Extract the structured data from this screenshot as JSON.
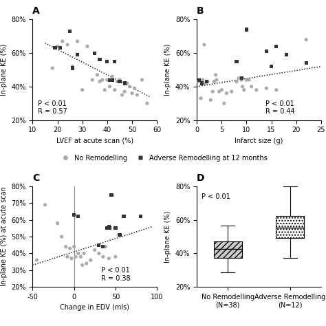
{
  "chart_data": [
    {
      "type": "scatter",
      "title": "A",
      "xlabel": "LVEF at acute scan (%)",
      "ylabel": "In-plane KE (%)",
      "xlim": [
        10,
        60
      ],
      "ylim": [
        0.2,
        0.8
      ],
      "xticks": [
        10,
        20,
        30,
        40,
        50,
        60
      ],
      "yticks": [
        {
          "value": 0.2,
          "label": "20%"
        },
        {
          "value": 0.4,
          "label": "40%"
        },
        {
          "value": 0.6,
          "label": "60%"
        },
        {
          "value": 0.8,
          "label": "80%"
        }
      ],
      "annotations": [
        {
          "text": "P < 0.01\nR = 0.57"
        }
      ],
      "legend": "center",
      "series": [
        {
          "name": "No Remodelling",
          "type": "scatter",
          "marker": "circle",
          "color": "#aaaaaa",
          "x": [
            18,
            20,
            22,
            24,
            26,
            28,
            30,
            32,
            34,
            36,
            37,
            38,
            39,
            40,
            41,
            42,
            43,
            44,
            45,
            46,
            47,
            48,
            49,
            50,
            51,
            52,
            54,
            56
          ],
          "values": [
            0.51,
            0.64,
            0.67,
            0.65,
            0.52,
            0.67,
            0.38,
            0.64,
            0.44,
            0.47,
            0.43,
            0.44,
            0.38,
            0.44,
            0.4,
            0.46,
            0.38,
            0.43,
            0.44,
            0.35,
            0.37,
            0.42,
            0.4,
            0.36,
            0.39,
            0.35,
            0.44,
            0.3
          ]
        },
        {
          "name": "Adverse Remodelling at 12 months",
          "type": "scatter",
          "marker": "square",
          "color": "#333333",
          "x": [
            19,
            21,
            25,
            26,
            28,
            35,
            37,
            40,
            41,
            42,
            43,
            45,
            47
          ],
          "values": [
            0.63,
            0.63,
            0.73,
            0.51,
            0.59,
            0.6,
            0.56,
            0.55,
            0.44,
            0.44,
            0.55,
            0.43,
            0.42
          ]
        },
        {
          "type": "line",
          "line_style": "dotted",
          "color": "#000000",
          "x": [
            15,
            57
          ],
          "values": [
            0.66,
            0.34
          ]
        }
      ]
    },
    {
      "type": "scatter",
      "title": "B",
      "xlabel": "Infarct size (g)",
      "ylabel": "In-plane KE (%)",
      "xlim": [
        0,
        25
      ],
      "ylim": [
        0.2,
        0.8
      ],
      "xticks": [
        0,
        5,
        10,
        15,
        20,
        25
      ],
      "yticks": [
        {
          "value": 0.2,
          "label": "20%"
        },
        {
          "value": 0.4,
          "label": "40%"
        },
        {
          "value": 0.6,
          "label": "60%"
        },
        {
          "value": 0.8,
          "label": "80%"
        }
      ],
      "annotations": [
        {
          "text": "P < 0.01\nR = 0.44"
        }
      ],
      "series": [
        {
          "name": "No Remodelling",
          "type": "scatter",
          "marker": "circle",
          "color": "#aaaaaa",
          "x": [
            0.3,
            0.8,
            1.2,
            1.8,
            2.2,
            2.8,
            3.2,
            3.8,
            4.5,
            5.0,
            5.5,
            6,
            7,
            8,
            8.5,
            9.0,
            9.5,
            10,
            11,
            12,
            14,
            16,
            22,
            0.5,
            1.5,
            3.5,
            4.0,
            9.2,
            10.5
          ],
          "values": [
            0.43,
            0.33,
            0.44,
            0.42,
            0.43,
            0.32,
            0.37,
            0.47,
            0.37,
            0.38,
            0.3,
            0.36,
            0.37,
            0.43,
            0.45,
            0.44,
            0.38,
            0.44,
            0.4,
            0.38,
            0.39,
            0.38,
            0.68,
            0.44,
            0.65,
            0.43,
            0.44,
            0.4,
            0.44
          ]
        },
        {
          "name": "Adverse Remodelling at 12 months",
          "type": "scatter",
          "marker": "square",
          "color": "#333333",
          "x": [
            0.5,
            1,
            2,
            8,
            9,
            10,
            14,
            15,
            16,
            18,
            22
          ],
          "values": [
            0.44,
            0.42,
            0.43,
            0.55,
            0.45,
            0.74,
            0.61,
            0.52,
            0.64,
            0.59,
            0.54
          ]
        },
        {
          "type": "line",
          "line_style": "dotted",
          "color": "#000000",
          "x": [
            0,
            25
          ],
          "values": [
            0.4,
            0.52
          ]
        }
      ]
    },
    {
      "type": "scatter",
      "title": "C",
      "xlabel": "Change in EDV (mls)",
      "ylabel": "In-plane KE (%) at acute scan",
      "xlim": [
        -50,
        100
      ],
      "ylim": [
        0.2,
        0.8
      ],
      "xticks": [
        -50,
        0,
        50,
        100
      ],
      "yticks": [
        {
          "value": 0.2,
          "label": "20%"
        },
        {
          "value": 0.3,
          "label": "30%"
        },
        {
          "value": 0.4,
          "label": "40%"
        },
        {
          "value": 0.5,
          "label": "50%"
        },
        {
          "value": 0.6,
          "label": "60%"
        },
        {
          "value": 0.7,
          "label": "70%"
        },
        {
          "value": 0.8,
          "label": "80%"
        }
      ],
      "annotations": [
        {
          "text": "P < 0.01\nR = 0.38"
        }
      ],
      "vlines": [
        {
          "x": 0,
          "color": "#888888"
        }
      ],
      "series": [
        {
          "name": "No Remodelling",
          "type": "scatter",
          "marker": "circle",
          "color": "#aaaaaa",
          "x": [
            -45,
            -35,
            -20,
            -15,
            -10,
            -8,
            -5,
            -3,
            0,
            2,
            5,
            8,
            10,
            12,
            15,
            20,
            25,
            30,
            35,
            38,
            42,
            50
          ],
          "values": [
            0.36,
            0.69,
            0.58,
            0.5,
            0.44,
            0.38,
            0.43,
            0.37,
            0.44,
            0.38,
            0.4,
            0.38,
            0.33,
            0.4,
            0.34,
            0.36,
            0.42,
            0.4,
            0.38,
            0.44,
            0.37,
            0.38
          ]
        },
        {
          "name": "Adverse Remodelling at 12 months",
          "type": "scatter",
          "marker": "square",
          "color": "#333333",
          "x": [
            0,
            5,
            30,
            35,
            40,
            42,
            43,
            45,
            50,
            55,
            60,
            80
          ],
          "values": [
            0.63,
            0.62,
            0.45,
            0.44,
            0.55,
            0.56,
            0.55,
            0.75,
            0.55,
            0.51,
            0.62,
            0.62
          ]
        },
        {
          "type": "line",
          "line_style": "dotted",
          "color": "#000000",
          "x": [
            -50,
            95
          ],
          "values": [
            0.33,
            0.56
          ]
        }
      ]
    },
    {
      "type": "box",
      "title": "D",
      "ylabel": "In-plane KE (%)",
      "ylim": [
        0.2,
        0.8
      ],
      "yticks": [
        {
          "value": 0.2,
          "label": "20%"
        },
        {
          "value": 0.4,
          "label": "40%"
        },
        {
          "value": 0.6,
          "label": "60%"
        },
        {
          "value": 0.8,
          "label": "80%"
        }
      ],
      "annotations": [
        {
          "text": "P < 0.01"
        }
      ],
      "categories": [
        "No Remodelling\n(N=38)",
        "Adverse Remodelling\n(N=12)"
      ],
      "colors": [
        "#cccccc",
        "#ffffff"
      ],
      "boxes": [
        {
          "q1": 0.375,
          "median": 0.425,
          "q3": 0.47,
          "whisker_low": 0.285,
          "whisker_high": 0.565
        },
        {
          "q1": 0.49,
          "median": 0.555,
          "q3": 0.625,
          "whisker_low": 0.375,
          "whisker_high": 0.8
        }
      ]
    }
  ]
}
